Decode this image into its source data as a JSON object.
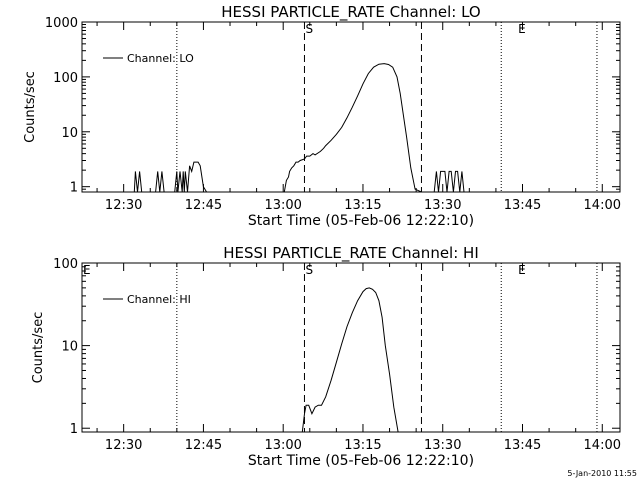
{
  "chart_data": [
    {
      "type": "line",
      "title": "HESSI PARTICLE_RATE Channel: LO",
      "xlabel": "Start Time (05-Feb-06 12:22:10)",
      "ylabel": "Counts/sec",
      "y_scale": "log",
      "ylim": [
        0.8,
        1000
      ],
      "xlim": [
        "12:22:10",
        "14:03:20"
      ],
      "y_ticks": [
        "1",
        "10",
        "100",
        "1000"
      ],
      "x_ticks": [
        "12:30",
        "12:45",
        "13:00",
        "13:15",
        "13:30",
        "13:45",
        "14:00"
      ],
      "legend": {
        "label": "Channel: LO",
        "placement": "top-left"
      },
      "markers": {
        "S": "13:04",
        "E": "13:44"
      },
      "dotted_lines": [
        "12:40",
        "13:41",
        "13:59"
      ],
      "dashed_lines": [
        "13:04",
        "13:26"
      ],
      "series": [
        {
          "name": "Channel: LO",
          "x": [
            "12:22:10",
            "12:32",
            "12:32.2",
            "12:32.6",
            "12:33",
            "12:33.4",
            "12:33.6",
            "12:36",
            "12:36.4",
            "12:36.8",
            "12:37.2",
            "12:37.6",
            "12:38",
            "12:38.2",
            "12:39.6",
            "12:40",
            "12:40.2",
            "12:40.6",
            "12:41",
            "12:41.2",
            "12:41.4",
            "12:41.6",
            "12:42",
            "12:42.4",
            "12:42.8",
            "12:43.2",
            "12:43.6",
            "12:44",
            "12:44.4",
            "12:45",
            "12:45.6",
            "12:46",
            "12:46.4",
            "12:47",
            "12:47.4",
            "13:00.2",
            "13:00.6",
            "13:01",
            "13:01.2",
            "13:01.6",
            "13:02",
            "13:02.4",
            "13:02.8",
            "13:03.2",
            "13:04",
            "13:04.4",
            "13:05",
            "13:05.6",
            "13:06",
            "13:07",
            "13:07.6",
            "13:08",
            "13:09",
            "13:10",
            "13:11",
            "13:12",
            "13:13",
            "13:14",
            "13:15",
            "13:16",
            "13:17",
            "13:18",
            "13:19",
            "13:19.8",
            "13:20.6",
            "13:21.4",
            "13:22",
            "13:22.6",
            "13:23.2",
            "13:24",
            "13:24.8",
            "13:26",
            "13:28.4",
            "13:28.8",
            "13:29.2",
            "13:29.6",
            "13:30",
            "13:30.4",
            "13:30.8",
            "13:31.2",
            "13:31.6",
            "13:32",
            "13:32.4",
            "13:32.8",
            "13:33.2",
            "13:33.6",
            "13:34",
            "14:03:20"
          ],
          "values": [
            0,
            0,
            1.9,
            0,
            1.9,
            0,
            0,
            0,
            1.9,
            0,
            1.9,
            0,
            0,
            0,
            0,
            1.9,
            0,
            1.9,
            0,
            1.9,
            0,
            1.9,
            0,
            2.4,
            1.9,
            2.8,
            2.8,
            2.8,
            2.4,
            1.0,
            0,
            0,
            0,
            0,
            0,
            0,
            1.3,
            1.5,
            1.9,
            2.2,
            2.4,
            2.8,
            2.8,
            3.0,
            3.2,
            3.6,
            3.6,
            4.0,
            3.8,
            4.4,
            5.0,
            5.6,
            7.0,
            9.0,
            12,
            18,
            28,
            45,
            75,
            115,
            150,
            170,
            175,
            168,
            150,
            100,
            50,
            20,
            8,
            2.2,
            0.9,
            0,
            0,
            1.9,
            0,
            1.9,
            1.9,
            1.9,
            0,
            1.9,
            1.9,
            0,
            1.9,
            1.9,
            0,
            1.9,
            0,
            0
          ]
        }
      ]
    },
    {
      "type": "line",
      "title": "HESSI PARTICLE_RATE Channel: HI",
      "xlabel": "Start Time (05-Feb-06 12:22:10)",
      "ylabel": "Counts/sec",
      "y_scale": "log",
      "ylim": [
        0.9,
        100
      ],
      "xlim": [
        "12:22:10",
        "14:03:20"
      ],
      "y_ticks": [
        "1",
        "10",
        "100"
      ],
      "x_ticks": [
        "12:30",
        "12:45",
        "13:00",
        "13:15",
        "13:30",
        "13:45",
        "14:00"
      ],
      "legend": {
        "label": "Channel: HI",
        "placement": "top-left"
      },
      "markers": {
        "E_left": "12:22:10",
        "S": "13:04",
        "E": "13:44"
      },
      "dotted_lines": [
        "12:40",
        "13:41",
        "13:59"
      ],
      "dashed_lines": [
        "13:04",
        "13:26"
      ],
      "series": [
        {
          "name": "Channel: HI",
          "x": [
            "12:22:10",
            "13:03.6",
            "13:04",
            "13:04.3",
            "13:04.8",
            "13:05.4",
            "13:06",
            "13:06.6",
            "13:07.2",
            "13:08",
            "13:09",
            "13:10",
            "13:11",
            "13:12",
            "13:13",
            "13:14",
            "13:15",
            "13:15.6",
            "13:16.2",
            "13:16.8",
            "13:17.4",
            "13:18",
            "13:18.6",
            "13:19.2",
            "13:20",
            "13:20.8",
            "13:21.6",
            "14:03:20"
          ],
          "values": [
            0,
            0,
            1.5,
            1.9,
            1.9,
            1.5,
            1.8,
            1.9,
            1.9,
            2.4,
            3.8,
            6.3,
            10.5,
            17,
            25,
            35,
            45,
            49,
            50,
            48,
            44,
            35,
            22,
            10,
            4.5,
            1.8,
            0.9,
            0
          ]
        }
      ]
    }
  ],
  "timestamp": "5-Jan-2010 11:55"
}
